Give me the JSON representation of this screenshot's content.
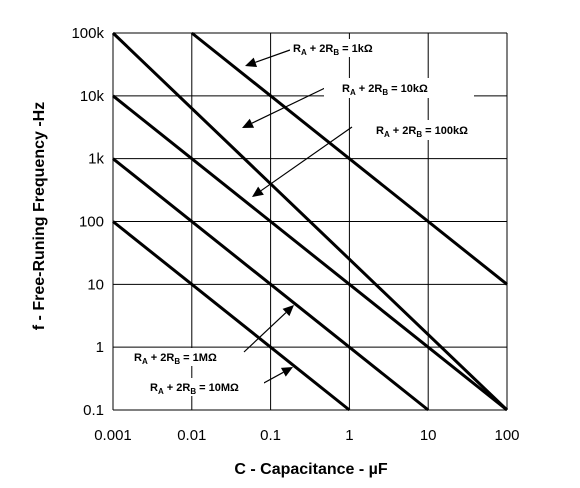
{
  "chart_data": {
    "type": "line",
    "xlabel": "C - Capacitance - µF",
    "ylabel": "f - Free-Runing Frequency -Hz",
    "x_scale": "log",
    "y_scale": "log",
    "xlim": [
      0.001,
      100
    ],
    "ylim": [
      0.1,
      100000
    ],
    "grid": true,
    "x_tick_labels": [
      "0.001",
      "0.01",
      "0.1",
      "1",
      "10",
      "100"
    ],
    "y_tick_labels": [
      "0.1",
      "1",
      "10",
      "100",
      "1k",
      "10k",
      "100k"
    ],
    "series": [
      {
        "name": "RA + 2RB = 1kΩ",
        "x": [
          0.01,
          100
        ],
        "y": [
          100000,
          10
        ]
      },
      {
        "name": "RA + 2RB = 10kΩ",
        "x": [
          0.001,
          100
        ],
        "y": [
          10000,
          0.1
        ]
      },
      {
        "name": "RA + 2RB = 100kΩ",
        "x": [
          0.001,
          10
        ],
        "y": [
          1000,
          0.1
        ]
      },
      {
        "name": "RA + 2RB = 1MΩ",
        "x": [
          0.001,
          1
        ],
        "y": [
          100,
          0.1
        ]
      },
      {
        "name": "RA + 2RB = 10MΩ",
        "x": [
          0.001,
          100
        ],
        "y": [
          100000,
          0.1
        ]
      }
    ],
    "annotations": [
      {
        "pre": "R",
        "s1": "A",
        "mid": " + 2R",
        "s2": "B",
        "post": " = 1kΩ"
      },
      {
        "pre": "R",
        "s1": "A",
        "mid": " + 2R",
        "s2": "B",
        "post": " = 10kΩ"
      },
      {
        "pre": "R",
        "s1": "A",
        "mid": " + 2R",
        "s2": "B",
        "post": " = 100kΩ"
      },
      {
        "pre": "R",
        "s1": "A",
        "mid": " + 2R",
        "s2": "B",
        "post": " = 1MΩ"
      },
      {
        "pre": "R",
        "s1": "A",
        "mid": " + 2R",
        "s2": "B",
        "post": " = 10MΩ"
      }
    ]
  }
}
